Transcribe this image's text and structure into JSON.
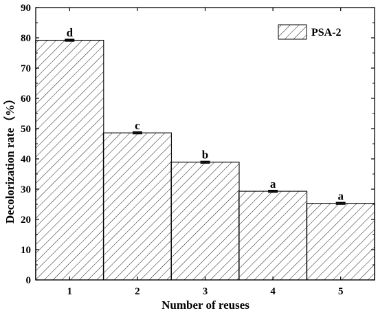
{
  "chart_data": {
    "type": "bar",
    "categories": [
      "1",
      "2",
      "3",
      "4",
      "5"
    ],
    "series": [
      {
        "name": "PSA-2",
        "values": [
          79.2,
          48.6,
          38.9,
          29.3,
          25.3
        ]
      }
    ],
    "error": [
      0.3,
      0.3,
      0.3,
      0.3,
      0.3
    ],
    "significance_labels": [
      "d",
      "c",
      "b",
      "a",
      "a"
    ],
    "xlabel": "Number of reuses",
    "ylabel": "Decolorization rate（%）",
    "ylim": [
      0,
      90
    ],
    "yticks": [
      0,
      10,
      20,
      30,
      40,
      50,
      60,
      70,
      80,
      90
    ],
    "legend_position": "top-right",
    "bar_fill": "hatched",
    "grid": false
  }
}
